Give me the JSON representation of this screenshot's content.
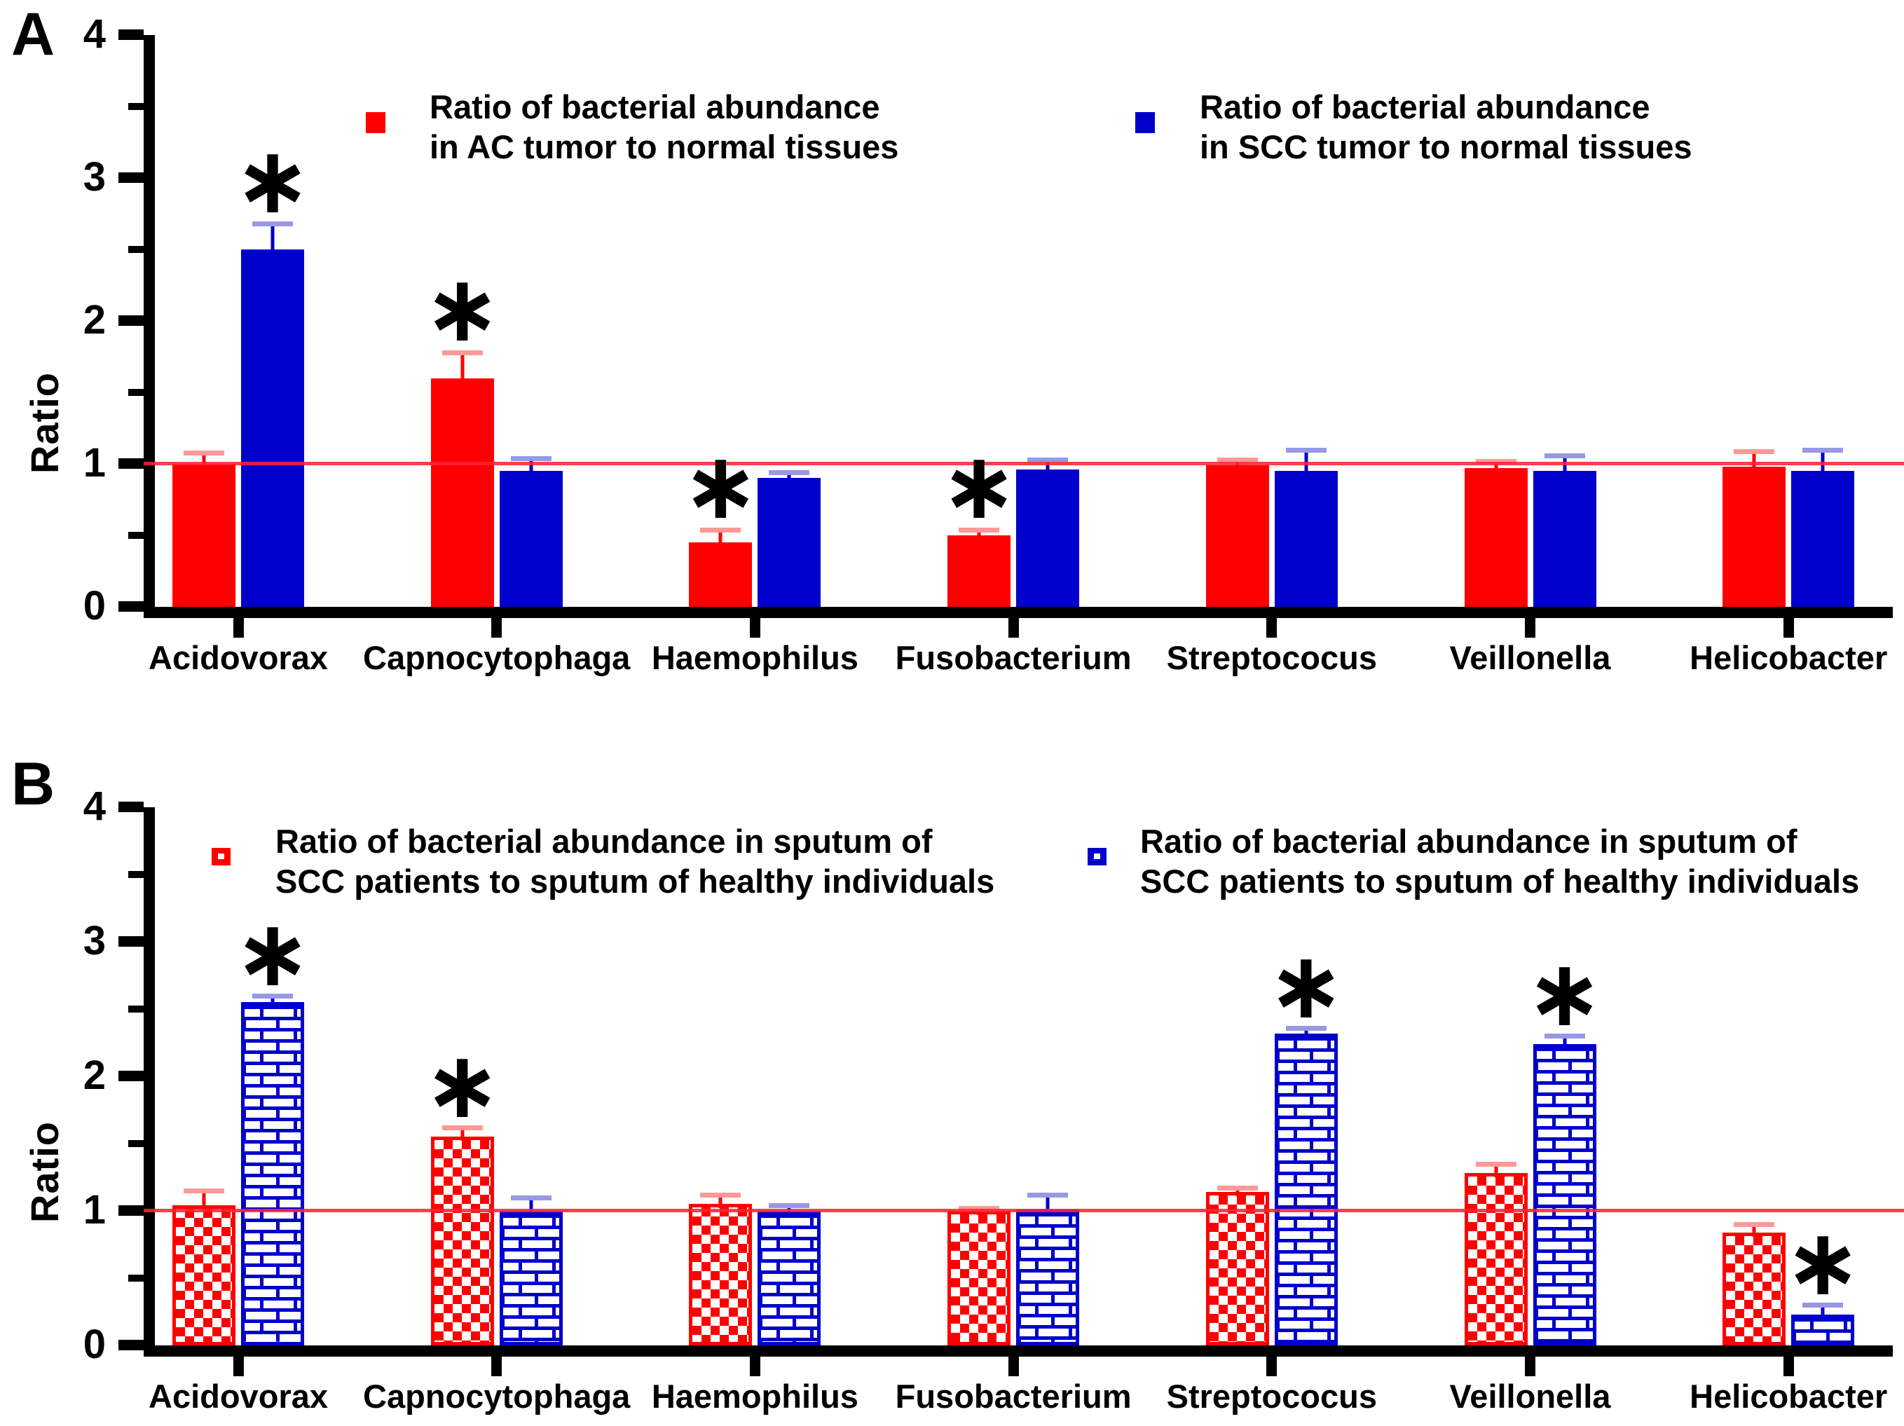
{
  "colors": {
    "red": "#FF0000",
    "blue": "#0000CC",
    "red_error_cap": "#FF9898",
    "blue_error_cap": "#9898E6",
    "reference_line": "#FF2233",
    "axis": "#000000"
  },
  "panels": [
    {
      "label": "A",
      "legend": [
        {
          "swatch": "red-solid-swatch",
          "color": "#FF0000",
          "pattern": "solid",
          "lines": [
            "Ratio of bacterial abundance",
            "in AC tumor to normal tissues"
          ]
        },
        {
          "swatch": "blue-solid-swatch",
          "color": "#0000CC",
          "pattern": "solid",
          "lines": [
            "Ratio of bacterial abundance",
            "in SCC tumor to normal tissues"
          ]
        }
      ]
    },
    {
      "label": "B",
      "legend": [
        {
          "swatch": "red-checker-swatch",
          "color": "#FF0000",
          "pattern": "checker",
          "lines": [
            "Ratio of bacterial abundance in sputum of",
            "SCC patients to sputum of healthy individuals"
          ]
        },
        {
          "swatch": "blue-brick-swatch",
          "color": "#0000CC",
          "pattern": "brick",
          "lines": [
            "Ratio of bacterial abundance in sputum of",
            "SCC patients to sputum of healthy individuals"
          ]
        }
      ]
    }
  ],
  "chart_data": [
    {
      "type": "bar",
      "panel": "A",
      "title": "",
      "xlabel": "",
      "ylabel": "Ratio",
      "ylim": [
        0,
        4
      ],
      "yticks": [
        0,
        1,
        2,
        3,
        4
      ],
      "minor_tick_step": 0.5,
      "grid": false,
      "legend_position": "top-inside",
      "reference_line_y": 1,
      "significance_symbol": "∗",
      "categories": [
        "Acidovorax",
        "Capnocytophaga",
        "Haemophilus",
        "Fusobacterium",
        "Streptococus",
        "Veillonella",
        "Helicobacter"
      ],
      "series": [
        {
          "name": "Ratio of bacterial abundance in AC tumor to normal tissues",
          "color": "#FF0000",
          "pattern": "solid",
          "values": [
            1.0,
            1.6,
            0.45,
            0.5,
            0.99,
            0.97,
            0.98
          ],
          "error_top": [
            1.08,
            1.78,
            0.54,
            0.54,
            1.03,
            1.02,
            1.09
          ],
          "stars": [
            false,
            true,
            true,
            true,
            false,
            false,
            false
          ]
        },
        {
          "name": "Ratio of bacterial abundance in SCC tumor to normal tissues",
          "color": "#0000CC",
          "pattern": "solid",
          "values": [
            2.5,
            0.95,
            0.9,
            0.96,
            0.95,
            0.95,
            0.95
          ],
          "error_top": [
            2.68,
            1.04,
            0.94,
            1.03,
            1.1,
            1.06,
            1.1
          ],
          "stars": [
            true,
            false,
            false,
            false,
            false,
            false,
            false
          ]
        }
      ]
    },
    {
      "type": "bar",
      "panel": "B",
      "title": "",
      "xlabel": "",
      "ylabel": "Ratio",
      "ylim": [
        0,
        4
      ],
      "yticks": [
        0,
        1,
        2,
        3,
        4
      ],
      "minor_tick_step": 0.5,
      "grid": false,
      "legend_position": "top-inside",
      "reference_line_y": 1,
      "significance_symbol": "∗",
      "categories": [
        "Acidovorax",
        "Capnocytophaga",
        "Haemophilus",
        "Fusobacterium",
        "Streptococus",
        "Veillonella",
        "Helicobacter"
      ],
      "series": [
        {
          "name": "Ratio of bacterial abundance in sputum of SCC patients to sputum of healthy individuals",
          "color": "#FF0000",
          "pattern": "checker",
          "values": [
            1.04,
            1.55,
            1.05,
            1.0,
            1.14,
            1.28,
            0.84
          ],
          "error_top": [
            1.15,
            1.62,
            1.12,
            1.02,
            1.17,
            1.35,
            0.9
          ],
          "stars": [
            false,
            true,
            false,
            false,
            false,
            false,
            false
          ]
        },
        {
          "name": "Ratio of bacterial abundance in sputum of SCC patients to sputum of healthy individuals",
          "color": "#0000CC",
          "pattern": "brick",
          "values": [
            2.55,
            1.0,
            1.0,
            1.01,
            2.32,
            2.24,
            0.23
          ],
          "error_top": [
            2.6,
            1.1,
            1.04,
            1.12,
            2.36,
            2.3,
            0.3
          ],
          "stars": [
            true,
            false,
            false,
            false,
            true,
            true,
            true
          ]
        }
      ]
    }
  ]
}
